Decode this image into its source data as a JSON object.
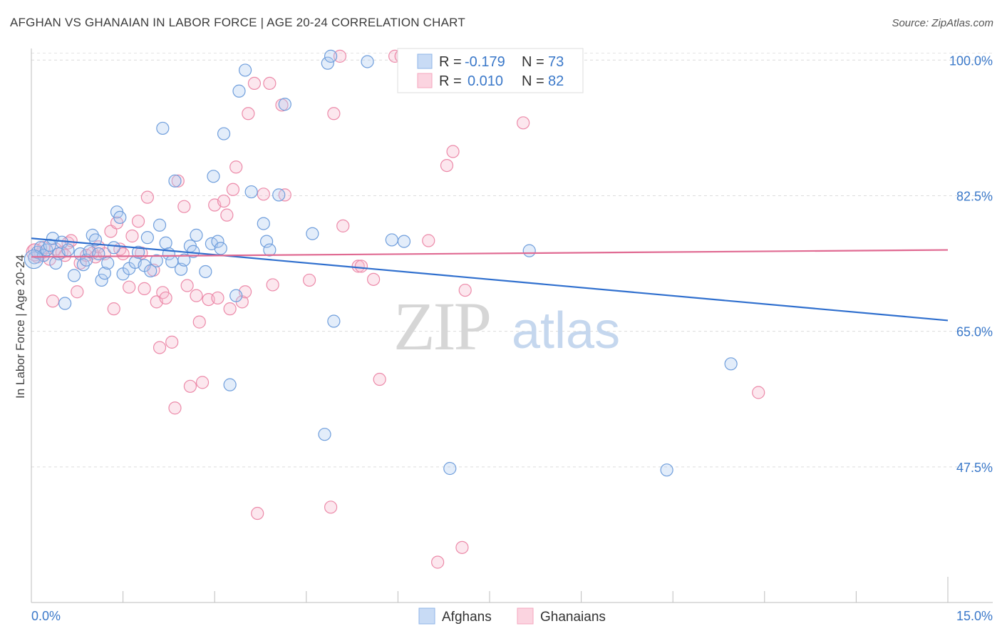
{
  "title": "AFGHAN VS GHANAIAN IN LABOR FORCE | AGE 20-24 CORRELATION CHART",
  "source": "Source: ZipAtlas.com",
  "watermark": {
    "zip": "ZIP",
    "atlas": "atlas"
  },
  "legend_top": [
    {
      "r_label": "R =",
      "r_value": "-0.179",
      "n_label": "N =",
      "n_value": "73",
      "color": "#8fb4e8"
    },
    {
      "r_label": "R =",
      "r_value": "0.010",
      "n_label": "N =",
      "n_value": "82",
      "color": "#f4a6be"
    }
  ],
  "colors": {
    "afghans": "#6f9edc",
    "ghanaians": "#ec8aa9",
    "afghans_line": "#2f6fce",
    "ghanaians_line": "#e06a92",
    "accent_text": "#3a78c9"
  },
  "chart_data": {
    "type": "scatter",
    "title": "AFGHAN VS GHANAIAN IN LABOR FORCE | AGE 20-24 CORRELATION CHART",
    "xlabel": "",
    "ylabel": "In Labor Force | Age 20-24",
    "xlim": [
      0,
      15
    ],
    "ylim": [
      30,
      101.5
    ],
    "x_tick_labels": [
      "0.0%",
      "15.0%"
    ],
    "y_ticks": [
      47.5,
      65.0,
      82.5,
      100.0
    ],
    "y_tick_labels": [
      "47.5%",
      "65.0%",
      "82.5%",
      "100.0%"
    ],
    "grid": true,
    "legend_position": "top-center",
    "series": [
      {
        "name": "Afghans",
        "r": -0.179,
        "n": 73,
        "trend": {
          "x": [
            0,
            15
          ],
          "y": [
            77.0,
            66.4
          ]
        },
        "points": [
          [
            0.05,
            74.5
          ],
          [
            0.1,
            75.2
          ],
          [
            0.15,
            75.8
          ],
          [
            0.2,
            74.8
          ],
          [
            0.25,
            75.5
          ],
          [
            0.3,
            76.1
          ],
          [
            0.35,
            77.0
          ],
          [
            0.4,
            73.8
          ],
          [
            0.45,
            75.0
          ],
          [
            0.5,
            76.5
          ],
          [
            0.55,
            68.6
          ],
          [
            0.6,
            75.5
          ],
          [
            0.7,
            72.2
          ],
          [
            0.8,
            75.0
          ],
          [
            0.85,
            73.6
          ],
          [
            0.9,
            74.2
          ],
          [
            0.95,
            75.3
          ],
          [
            1.0,
            77.4
          ],
          [
            1.05,
            76.8
          ],
          [
            1.1,
            75.0
          ],
          [
            1.15,
            71.6
          ],
          [
            1.2,
            72.5
          ],
          [
            1.25,
            73.8
          ],
          [
            1.35,
            75.8
          ],
          [
            1.4,
            80.4
          ],
          [
            1.45,
            79.7
          ],
          [
            1.5,
            72.4
          ],
          [
            1.6,
            73.1
          ],
          [
            1.7,
            73.9
          ],
          [
            1.75,
            75.2
          ],
          [
            1.85,
            73.5
          ],
          [
            1.9,
            77.1
          ],
          [
            1.95,
            72.8
          ],
          [
            2.05,
            74.1
          ],
          [
            2.1,
            78.7
          ],
          [
            2.15,
            91.2
          ],
          [
            2.2,
            76.4
          ],
          [
            2.25,
            75.0
          ],
          [
            2.3,
            74.0
          ],
          [
            2.35,
            84.4
          ],
          [
            2.45,
            73.0
          ],
          [
            2.5,
            74.2
          ],
          [
            2.6,
            76.0
          ],
          [
            2.65,
            75.3
          ],
          [
            2.7,
            77.4
          ],
          [
            2.85,
            72.7
          ],
          [
            2.95,
            76.3
          ],
          [
            2.98,
            85.0
          ],
          [
            3.05,
            76.6
          ],
          [
            3.1,
            75.7
          ],
          [
            3.15,
            90.5
          ],
          [
            3.25,
            58.1
          ],
          [
            3.35,
            69.6
          ],
          [
            3.4,
            96.0
          ],
          [
            3.5,
            98.7
          ],
          [
            3.6,
            83.0
          ],
          [
            3.8,
            78.9
          ],
          [
            3.85,
            76.6
          ],
          [
            3.9,
            75.5
          ],
          [
            4.05,
            82.6
          ],
          [
            4.15,
            94.3
          ],
          [
            4.6,
            77.6
          ],
          [
            4.8,
            51.7
          ],
          [
            4.85,
            99.6
          ],
          [
            4.9,
            100.5
          ],
          [
            4.95,
            66.3
          ],
          [
            5.5,
            99.8
          ],
          [
            5.9,
            76.8
          ],
          [
            6.1,
            76.6
          ],
          [
            6.85,
            47.3
          ],
          [
            8.15,
            75.4
          ],
          [
            10.4,
            47.1
          ],
          [
            11.45,
            60.8
          ]
        ]
      },
      {
        "name": "Ghanaians",
        "r": 0.01,
        "n": 82,
        "trend": {
          "x": [
            0,
            15
          ],
          "y": [
            74.6,
            75.5
          ]
        },
        "points": [
          [
            0.05,
            75.5
          ],
          [
            0.1,
            74.6
          ],
          [
            0.15,
            75.0
          ],
          [
            0.2,
            75.8
          ],
          [
            0.3,
            74.3
          ],
          [
            0.35,
            68.9
          ],
          [
            0.4,
            75.6
          ],
          [
            0.5,
            75.2
          ],
          [
            0.55,
            74.8
          ],
          [
            0.6,
            76.4
          ],
          [
            0.65,
            76.7
          ],
          [
            0.75,
            70.1
          ],
          [
            0.8,
            73.8
          ],
          [
            0.9,
            74.8
          ],
          [
            1.0,
            75.1
          ],
          [
            1.05,
            74.6
          ],
          [
            1.1,
            75.9
          ],
          [
            1.2,
            75.0
          ],
          [
            1.3,
            77.9
          ],
          [
            1.35,
            67.9
          ],
          [
            1.4,
            79.0
          ],
          [
            1.45,
            75.6
          ],
          [
            1.5,
            75.0
          ],
          [
            1.6,
            70.7
          ],
          [
            1.65,
            77.3
          ],
          [
            1.75,
            79.2
          ],
          [
            1.8,
            75.1
          ],
          [
            1.85,
            70.5
          ],
          [
            1.9,
            82.3
          ],
          [
            2.0,
            72.9
          ],
          [
            2.05,
            68.8
          ],
          [
            2.1,
            62.9
          ],
          [
            2.15,
            70.0
          ],
          [
            2.2,
            69.3
          ],
          [
            2.3,
            63.6
          ],
          [
            2.35,
            55.1
          ],
          [
            2.4,
            84.4
          ],
          [
            2.5,
            81.1
          ],
          [
            2.55,
            70.9
          ],
          [
            2.6,
            57.9
          ],
          [
            2.7,
            69.6
          ],
          [
            2.75,
            66.2
          ],
          [
            2.8,
            58.4
          ],
          [
            2.9,
            69.1
          ],
          [
            3.0,
            81.3
          ],
          [
            3.05,
            69.3
          ],
          [
            3.15,
            81.8
          ],
          [
            3.2,
            80.0
          ],
          [
            3.25,
            67.9
          ],
          [
            3.3,
            83.3
          ],
          [
            3.35,
            86.2
          ],
          [
            3.45,
            68.8
          ],
          [
            3.5,
            70.1
          ],
          [
            3.55,
            93.1
          ],
          [
            3.65,
            97.0
          ],
          [
            3.7,
            41.5
          ],
          [
            3.8,
            82.7
          ],
          [
            3.9,
            97.0
          ],
          [
            3.95,
            71.0
          ],
          [
            4.1,
            94.2
          ],
          [
            4.15,
            82.6
          ],
          [
            4.55,
            71.6
          ],
          [
            4.9,
            42.3
          ],
          [
            4.95,
            93.1
          ],
          [
            5.05,
            100.5
          ],
          [
            5.1,
            78.6
          ],
          [
            5.35,
            73.4
          ],
          [
            5.4,
            73.4
          ],
          [
            5.6,
            71.7
          ],
          [
            5.7,
            58.8
          ],
          [
            5.95,
            100.5
          ],
          [
            6.05,
            100.5
          ],
          [
            6.35,
            100.6
          ],
          [
            6.5,
            76.7
          ],
          [
            6.65,
            35.2
          ],
          [
            6.8,
            86.4
          ],
          [
            6.9,
            88.2
          ],
          [
            7.05,
            37.1
          ],
          [
            7.1,
            70.3
          ],
          [
            7.55,
            100.5
          ],
          [
            8.05,
            91.9
          ],
          [
            11.9,
            57.1
          ]
        ]
      }
    ]
  },
  "legend_bottom": [
    {
      "label": "Afghans",
      "color": "#8fb4e8"
    },
    {
      "label": "Ghanaians",
      "color": "#f4a6be"
    }
  ]
}
